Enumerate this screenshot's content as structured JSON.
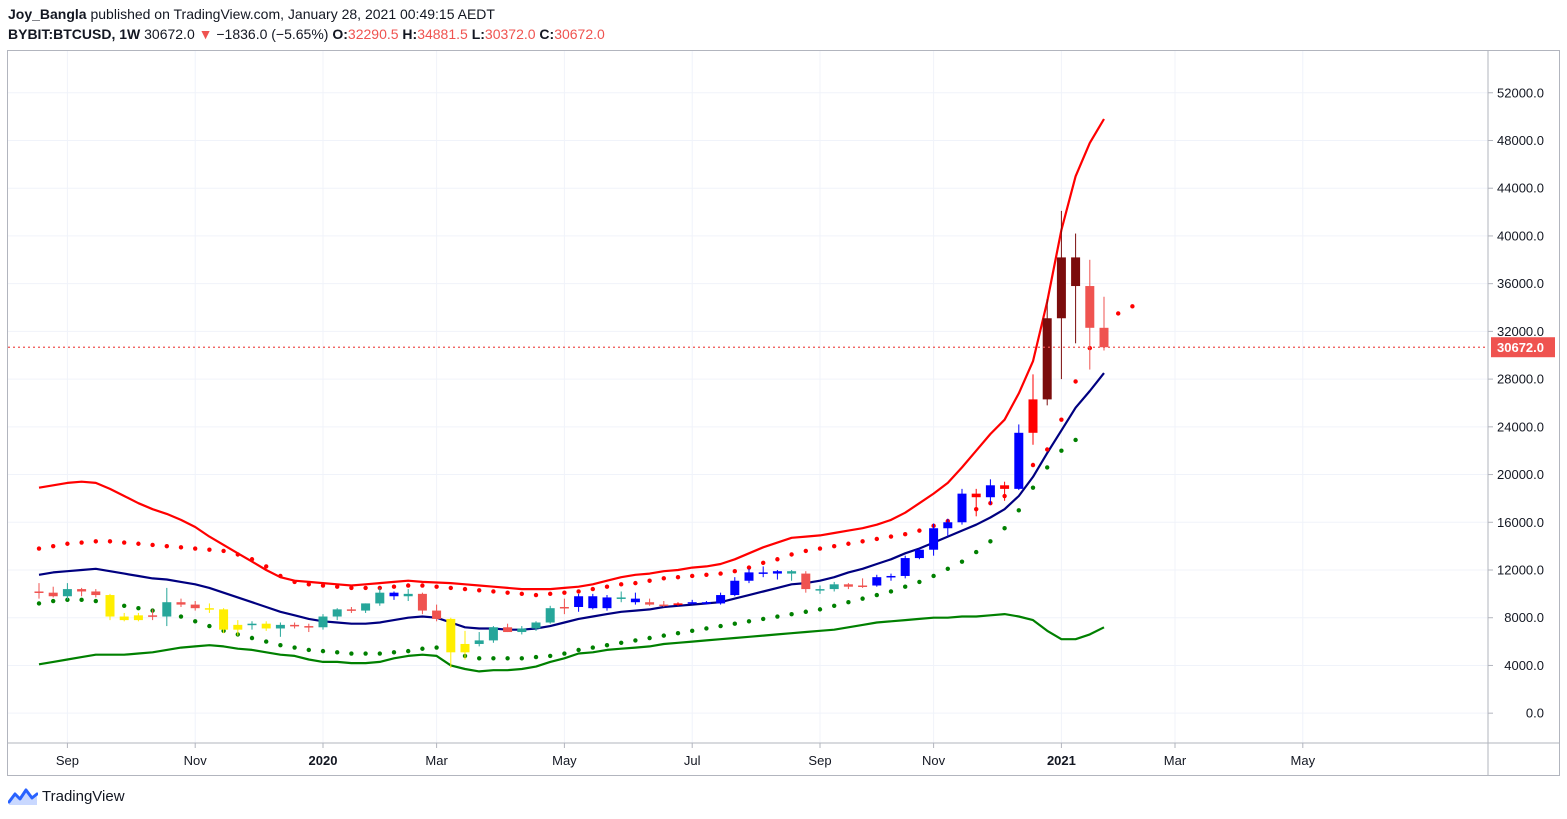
{
  "header": {
    "author": "Joy_Bangla",
    "published_text": "published on TradingView.com, January 28, 2021 00:49:15 AEDT",
    "symbol": "BYBIT:BTCUSD, 1W",
    "last": "30672.0",
    "change_arrow": "▼",
    "change": "−1836.0 (−5.65%)",
    "o_label": "O:",
    "o_value": "32290.5",
    "h_label": "H:",
    "h_value": "34881.5",
    "l_label": "L:",
    "l_value": "30372.0",
    "c_label": "C:",
    "c_value": "30672.0"
  },
  "footer": {
    "brand": "TradingView",
    "logo_icon": "tradingview-logo-icon"
  },
  "colors": {
    "bull": "#26a69a",
    "bear": "#ef5350",
    "yellow": "#ffee00",
    "blue": "#0000ff",
    "darkred": "#7b0c0c",
    "red": "#ff0000",
    "upper_band": "#ff0000",
    "middle_band": "#000080",
    "lower_band": "#008000",
    "upper_dots": "#ff0000",
    "lower_dots": "#008000",
    "price_label_bg": "#ef5350",
    "grid": "#f0f3fa",
    "axis_text": "#131722"
  },
  "chart_data": {
    "type": "candlestick",
    "title": "BYBIT:BTCUSD, 1W",
    "ylim": [
      -2500,
      55500
    ],
    "y_ticks": [
      "52000.0",
      "48000.0",
      "44000.0",
      "40000.0",
      "36000.0",
      "32000.0",
      "28000.0",
      "24000.0",
      "20000.0",
      "16000.0",
      "12000.0",
      "8000.0",
      "4000.0",
      "0.0"
    ],
    "x_ticks": [
      {
        "label": "Sep",
        "bar": 2,
        "bold": false
      },
      {
        "label": "Nov",
        "bar": 11,
        "bold": false
      },
      {
        "label": "2020",
        "bar": 20,
        "bold": true
      },
      {
        "label": "Mar",
        "bar": 28,
        "bold": false
      },
      {
        "label": "May",
        "bar": 37,
        "bold": false
      },
      {
        "label": "Jul",
        "bar": 46,
        "bold": false
      },
      {
        "label": "Sep",
        "bar": 55,
        "bold": false
      },
      {
        "label": "Nov",
        "bar": 63,
        "bold": false
      },
      {
        "label": "2021",
        "bar": 72,
        "bold": true
      },
      {
        "label": "Mar",
        "bar": 80,
        "bold": false
      },
      {
        "label": "May",
        "bar": 89,
        "bold": false
      }
    ],
    "last_price": 30672.0,
    "last_price_label": "30672.0",
    "candles": [
      {
        "o": 10200,
        "h": 10900,
        "l": 9600,
        "c": 10100,
        "col": "bear"
      },
      {
        "o": 10100,
        "h": 10600,
        "l": 9700,
        "c": 9800,
        "col": "bear"
      },
      {
        "o": 9800,
        "h": 10900,
        "l": 9500,
        "c": 10400,
        "col": "bull"
      },
      {
        "o": 10400,
        "h": 10500,
        "l": 9800,
        "c": 10200,
        "col": "bear"
      },
      {
        "o": 10200,
        "h": 10400,
        "l": 9700,
        "c": 9900,
        "col": "bear"
      },
      {
        "o": 9900,
        "h": 10000,
        "l": 7800,
        "c": 8100,
        "col": "yellow"
      },
      {
        "o": 8100,
        "h": 8400,
        "l": 7700,
        "c": 7800,
        "col": "yellow"
      },
      {
        "o": 7800,
        "h": 8400,
        "l": 7700,
        "c": 8200,
        "col": "yellow"
      },
      {
        "o": 8200,
        "h": 8700,
        "l": 7800,
        "c": 8100,
        "col": "bear"
      },
      {
        "o": 8100,
        "h": 10500,
        "l": 7300,
        "c": 9300,
        "col": "bull"
      },
      {
        "o": 9300,
        "h": 9600,
        "l": 8900,
        "c": 9100,
        "col": "bear"
      },
      {
        "o": 9100,
        "h": 9400,
        "l": 8600,
        "c": 8800,
        "col": "bear"
      },
      {
        "o": 8800,
        "h": 9200,
        "l": 8400,
        "c": 8700,
        "col": "yellow"
      },
      {
        "o": 8700,
        "h": 8800,
        "l": 6700,
        "c": 7000,
        "col": "yellow"
      },
      {
        "o": 7000,
        "h": 7800,
        "l": 6500,
        "c": 7400,
        "col": "yellow"
      },
      {
        "o": 7400,
        "h": 7700,
        "l": 7000,
        "c": 7500,
        "col": "bull"
      },
      {
        "o": 7500,
        "h": 7700,
        "l": 6900,
        "c": 7100,
        "col": "yellow"
      },
      {
        "o": 7100,
        "h": 7600,
        "l": 6400,
        "c": 7400,
        "col": "bull"
      },
      {
        "o": 7400,
        "h": 7600,
        "l": 7100,
        "c": 7300,
        "col": "bear"
      },
      {
        "o": 7300,
        "h": 7500,
        "l": 6800,
        "c": 7200,
        "col": "bear"
      },
      {
        "o": 7200,
        "h": 8300,
        "l": 7000,
        "c": 8100,
        "col": "bull"
      },
      {
        "o": 8100,
        "h": 8800,
        "l": 7800,
        "c": 8700,
        "col": "bull"
      },
      {
        "o": 8700,
        "h": 8900,
        "l": 8400,
        "c": 8600,
        "col": "bear"
      },
      {
        "o": 8600,
        "h": 9200,
        "l": 8400,
        "c": 9200,
        "col": "bull"
      },
      {
        "o": 9200,
        "h": 10500,
        "l": 9000,
        "c": 10100,
        "col": "bull"
      },
      {
        "o": 10100,
        "h": 10200,
        "l": 9500,
        "c": 9800,
        "col": "blue"
      },
      {
        "o": 9800,
        "h": 10400,
        "l": 9400,
        "c": 10000,
        "col": "bull"
      },
      {
        "o": 10000,
        "h": 10100,
        "l": 8300,
        "c": 8600,
        "col": "bear"
      },
      {
        "o": 8600,
        "h": 9100,
        "l": 7700,
        "c": 7900,
        "col": "bear"
      },
      {
        "o": 7900,
        "h": 8000,
        "l": 3800,
        "c": 5100,
        "col": "yellow"
      },
      {
        "o": 5100,
        "h": 6900,
        "l": 4500,
        "c": 5800,
        "col": "yellow"
      },
      {
        "o": 5800,
        "h": 6800,
        "l": 5600,
        "c": 6100,
        "col": "bull"
      },
      {
        "o": 6100,
        "h": 7300,
        "l": 5900,
        "c": 7200,
        "col": "bull"
      },
      {
        "o": 7200,
        "h": 7500,
        "l": 6800,
        "c": 6800,
        "col": "bear"
      },
      {
        "o": 6800,
        "h": 7300,
        "l": 6600,
        "c": 7100,
        "col": "bull"
      },
      {
        "o": 7100,
        "h": 7700,
        "l": 6900,
        "c": 7600,
        "col": "bull"
      },
      {
        "o": 7600,
        "h": 9000,
        "l": 7500,
        "c": 8800,
        "col": "bull"
      },
      {
        "o": 8800,
        "h": 9600,
        "l": 8300,
        "c": 8900,
        "col": "bear"
      },
      {
        "o": 8900,
        "h": 10000,
        "l": 8500,
        "c": 9800,
        "col": "blue"
      },
      {
        "o": 9800,
        "h": 10000,
        "l": 8700,
        "c": 8800,
        "col": "blue"
      },
      {
        "o": 8800,
        "h": 9900,
        "l": 8600,
        "c": 9700,
        "col": "blue"
      },
      {
        "o": 9700,
        "h": 10200,
        "l": 9300,
        "c": 9600,
        "col": "bull"
      },
      {
        "o": 9600,
        "h": 10100,
        "l": 9100,
        "c": 9300,
        "col": "blue"
      },
      {
        "o": 9300,
        "h": 9600,
        "l": 9000,
        "c": 9100,
        "col": "bear"
      },
      {
        "o": 9100,
        "h": 9400,
        "l": 8900,
        "c": 9100,
        "col": "bear"
      },
      {
        "o": 9100,
        "h": 9300,
        "l": 9000,
        "c": 9200,
        "col": "red"
      },
      {
        "o": 9200,
        "h": 9500,
        "l": 9100,
        "c": 9300,
        "col": "blue"
      },
      {
        "o": 9300,
        "h": 9400,
        "l": 9100,
        "c": 9200,
        "col": "blue"
      },
      {
        "o": 9200,
        "h": 10100,
        "l": 9100,
        "c": 9900,
        "col": "blue"
      },
      {
        "o": 9900,
        "h": 11400,
        "l": 9800,
        "c": 11100,
        "col": "blue"
      },
      {
        "o": 11100,
        "h": 12100,
        "l": 10900,
        "c": 11800,
        "col": "blue"
      },
      {
        "o": 11800,
        "h": 12300,
        "l": 11400,
        "c": 11700,
        "col": "blue"
      },
      {
        "o": 11700,
        "h": 12000,
        "l": 11200,
        "c": 11900,
        "col": "blue"
      },
      {
        "o": 11900,
        "h": 12000,
        "l": 11100,
        "c": 11700,
        "col": "bull"
      },
      {
        "o": 11700,
        "h": 11900,
        "l": 10100,
        "c": 10400,
        "col": "bear"
      },
      {
        "o": 10400,
        "h": 10700,
        "l": 10000,
        "c": 10400,
        "col": "bull"
      },
      {
        "o": 10400,
        "h": 11000,
        "l": 10200,
        "c": 10800,
        "col": "bull"
      },
      {
        "o": 10800,
        "h": 10900,
        "l": 10400,
        "c": 10600,
        "col": "bear"
      },
      {
        "o": 10600,
        "h": 11300,
        "l": 10500,
        "c": 10700,
        "col": "bear"
      },
      {
        "o": 10700,
        "h": 11600,
        "l": 10600,
        "c": 11400,
        "col": "blue"
      },
      {
        "o": 11400,
        "h": 11700,
        "l": 11100,
        "c": 11500,
        "col": "blue"
      },
      {
        "o": 11500,
        "h": 13200,
        "l": 11300,
        "c": 13000,
        "col": "blue"
      },
      {
        "o": 13000,
        "h": 13800,
        "l": 12900,
        "c": 13700,
        "col": "blue"
      },
      {
        "o": 13700,
        "h": 15900,
        "l": 13200,
        "c": 15500,
        "col": "blue"
      },
      {
        "o": 15500,
        "h": 16300,
        "l": 14800,
        "c": 16000,
        "col": "blue"
      },
      {
        "o": 16000,
        "h": 18800,
        "l": 15800,
        "c": 18400,
        "col": "blue"
      },
      {
        "o": 18400,
        "h": 18800,
        "l": 16500,
        "c": 18100,
        "col": "red"
      },
      {
        "o": 18100,
        "h": 19600,
        "l": 17500,
        "c": 19100,
        "col": "blue"
      },
      {
        "o": 19100,
        "h": 19400,
        "l": 17800,
        "c": 18800,
        "col": "red"
      },
      {
        "o": 18800,
        "h": 24200,
        "l": 18700,
        "c": 23500,
        "col": "blue"
      },
      {
        "o": 23500,
        "h": 28400,
        "l": 22500,
        "c": 26300,
        "col": "red"
      },
      {
        "o": 26300,
        "h": 34700,
        "l": 25800,
        "c": 33100,
        "col": "darkred"
      },
      {
        "o": 33100,
        "h": 42100,
        "l": 28000,
        "c": 38200,
        "col": "darkred"
      },
      {
        "o": 38200,
        "h": 40200,
        "l": 31000,
        "c": 35800,
        "col": "darkred"
      },
      {
        "o": 35800,
        "h": 38000,
        "l": 28800,
        "c": 32300,
        "col": "bear"
      },
      {
        "o": 32300,
        "h": 34900,
        "l": 30400,
        "c": 30672,
        "col": "bear"
      }
    ],
    "upper_band": [
      18900,
      19100,
      19300,
      19400,
      19300,
      18800,
      18200,
      17600,
      17100,
      16700,
      16200,
      15600,
      14800,
      14100,
      13400,
      12700,
      12000,
      11400,
      11100,
      11000,
      10900,
      10800,
      10700,
      10800,
      10900,
      11000,
      11100,
      11000,
      10950,
      10900,
      10800,
      10700,
      10600,
      10500,
      10400,
      10400,
      10400,
      10500,
      10600,
      10800,
      11100,
      11400,
      11600,
      11700,
      11900,
      12000,
      12200,
      12300,
      12500,
      12900,
      13400,
      13900,
      14300,
      14700,
      14800,
      14900,
      15100,
      15300,
      15500,
      15800,
      16200,
      16800,
      17600,
      18400,
      19300,
      20600,
      22000,
      23400,
      24600,
      26800,
      29500,
      34500,
      40500,
      45000,
      47800,
      49800
    ],
    "middle_band": [
      11600,
      11800,
      11900,
      12000,
      12100,
      11900,
      11700,
      11500,
      11300,
      11200,
      11000,
      10800,
      10500,
      10100,
      9700,
      9300,
      8900,
      8500,
      8200,
      7900,
      7700,
      7600,
      7500,
      7500,
      7600,
      7800,
      8000,
      8100,
      8000,
      7600,
      7200,
      7100,
      7100,
      7000,
      7000,
      7100,
      7300,
      7600,
      7900,
      8100,
      8300,
      8500,
      8600,
      8700,
      8900,
      9000,
      9100,
      9200,
      9300,
      9600,
      9900,
      10200,
      10500,
      10800,
      10900,
      11100,
      11400,
      11800,
      12100,
      12500,
      12900,
      13400,
      13800,
      14300,
      14800,
      15300,
      15800,
      16400,
      17100,
      18200,
      19800,
      21800,
      23700,
      25600,
      27000,
      28500
    ],
    "lower_band": [
      4100,
      4300,
      4500,
      4700,
      4900,
      4900,
      4900,
      5000,
      5100,
      5300,
      5500,
      5600,
      5700,
      5600,
      5400,
      5300,
      5100,
      4900,
      4800,
      4500,
      4300,
      4300,
      4200,
      4200,
      4300,
      4600,
      4800,
      4900,
      4800,
      4000,
      3700,
      3500,
      3600,
      3600,
      3700,
      3900,
      4300,
      4600,
      5000,
      5100,
      5300,
      5400,
      5500,
      5600,
      5800,
      5900,
      6000,
      6100,
      6200,
      6300,
      6400,
      6500,
      6600,
      6700,
      6800,
      6900,
      7000,
      7200,
      7400,
      7600,
      7700,
      7800,
      7900,
      8000,
      8000,
      8100,
      8100,
      8200,
      8300,
      8100,
      7800,
      6900,
      6200,
      6200,
      6600,
      7200
    ],
    "upper_dots": [
      13800,
      14000,
      14200,
      14300,
      14400,
      14400,
      14300,
      14200,
      14100,
      14000,
      13900,
      13800,
      13700,
      13600,
      13300,
      12900,
      12300,
      11500,
      11000,
      10800,
      10700,
      10600,
      10500,
      10500,
      10500,
      10600,
      10700,
      10700,
      10600,
      10500,
      10400,
      10300,
      10200,
      10100,
      10000,
      9900,
      10000,
      10100,
      10200,
      10400,
      10600,
      10800,
      10900,
      11100,
      11300,
      11400,
      11500,
      11600,
      11700,
      11900,
      12200,
      12600,
      12900,
      13300,
      13600,
      13800,
      14000,
      14200,
      14400,
      14600,
      14800,
      15000,
      15300,
      15700,
      16100,
      16600,
      17100,
      17600,
      18200,
      19200,
      20800,
      22100,
      24600,
      27800,
      30600,
      31000,
      33500,
      34100
    ],
    "lower_dots": [
      9200,
      9400,
      9500,
      9500,
      9400,
      9200,
      9000,
      8800,
      8600,
      8400,
      8100,
      7700,
      7300,
      6900,
      6600,
      6300,
      6000,
      5700,
      5500,
      5300,
      5200,
      5100,
      5000,
      5000,
      5000,
      5100,
      5200,
      5400,
      5500,
      5400,
      4800,
      4600,
      4600,
      4600,
      4600,
      4700,
      4800,
      5000,
      5300,
      5500,
      5700,
      5900,
      6100,
      6300,
      6500,
      6700,
      6900,
      7100,
      7300,
      7500,
      7700,
      7900,
      8100,
      8300,
      8500,
      8700,
      9000,
      9300,
      9600,
      9900,
      10200,
      10600,
      11000,
      11500,
      12100,
      12700,
      13500,
      14400,
      15500,
      17000,
      18900,
      20600,
      22000,
      22900
    ]
  }
}
